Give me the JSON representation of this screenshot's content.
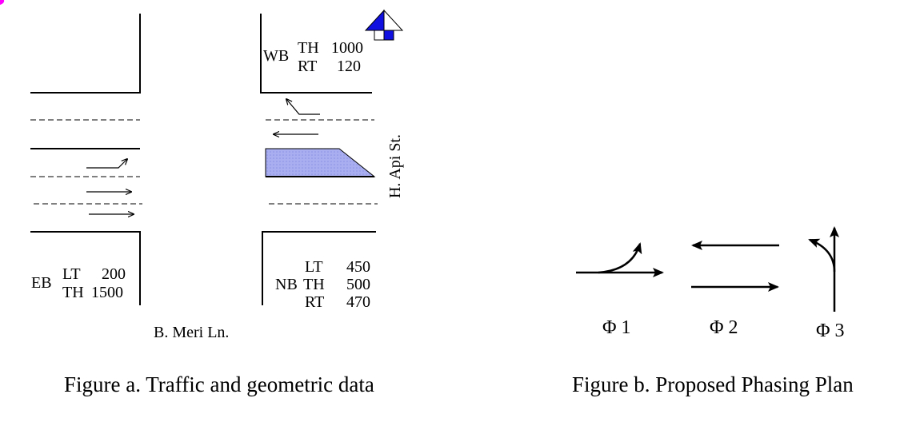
{
  "colors": {
    "ink": "#000000",
    "island_fill": "#a9aef0",
    "north_arrow_fill": "#1010e0",
    "corner_mark": "#ff00ff"
  },
  "figure_a": {
    "caption": "Figure a. Traffic and geometric data",
    "street_ew": "B. Meri Ln.",
    "street_ns": "H. Api St.",
    "north_arrow_icon": "north-arrow-icon",
    "wb": {
      "dir": "WB",
      "th_label": "TH",
      "th_value": "1000",
      "rt_label": "RT",
      "rt_value": "120"
    },
    "eb": {
      "dir": "EB",
      "lt_label": "LT",
      "lt_value": "200",
      "th_label": "TH",
      "th_value": "1500"
    },
    "nb": {
      "dir": "NB",
      "lt_label": "LT",
      "lt_value": "450",
      "th_label": "TH",
      "th_value": "500",
      "rt_label": "RT",
      "rt_value": "470"
    }
  },
  "figure_b": {
    "caption": "Figure b. Proposed Phasing Plan",
    "phases": [
      {
        "label": "Φ 1",
        "icon": "eb-lt-th-arrow-icon"
      },
      {
        "label": "Φ 2",
        "icon": "wb-eb-through-arrows-icon"
      },
      {
        "label": "Φ 3",
        "icon": "nb-lt-th-arrow-icon"
      }
    ]
  }
}
